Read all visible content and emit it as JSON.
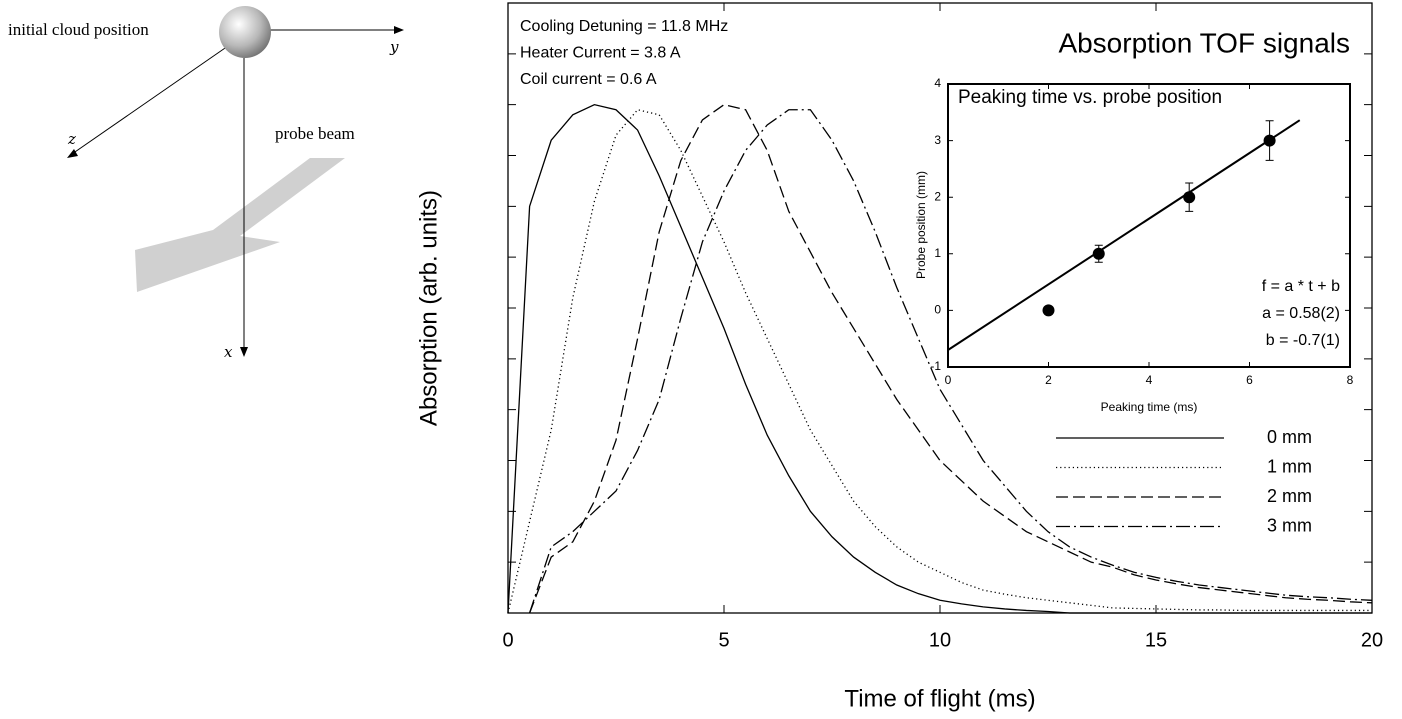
{
  "diagram": {
    "cloud_label": "initial cloud position",
    "beam_label": "probe beam",
    "axis_labels": [
      "y",
      "z",
      "x"
    ]
  },
  "chart_data": [
    {
      "type": "line",
      "title": "Absorption TOF signals",
      "annotations": [
        "Cooling Detuning = 11.8 MHz",
        "Heater Current = 3.8 A",
        "Coil current = 0.6 A"
      ],
      "xlabel": "Time of flight (ms)",
      "ylabel": "Absorption (arb. units)",
      "x": [
        0,
        0.5,
        1,
        1.5,
        2,
        2.5,
        3,
        3.5,
        4,
        4.5,
        5,
        5.5,
        6,
        6.5,
        7,
        7.5,
        8,
        8.5,
        9,
        9.5,
        10,
        10.5,
        11,
        11.5,
        12,
        12.5,
        13,
        13.5,
        14,
        14.5,
        15,
        15.5,
        16,
        16.5,
        17,
        17.5,
        18,
        18.5,
        19,
        19.5,
        20
      ],
      "series": [
        {
          "name": "0 mm",
          "color": "#000000",
          "dash": "solid",
          "values": [
            0,
            0.8,
            0.93,
            0.98,
            1.0,
            0.99,
            0.95,
            0.86,
            0.76,
            0.66,
            0.56,
            0.45,
            0.35,
            0.27,
            0.2,
            0.15,
            0.11,
            0.08,
            0.055,
            0.038,
            0.025,
            0.018,
            0.012,
            0.008,
            0.005,
            0.003,
            0,
            0,
            0,
            0,
            0,
            0,
            0,
            0,
            0,
            0,
            0,
            0,
            0,
            0,
            0
          ]
        },
        {
          "name": "1 mm",
          "color": "#000000",
          "dash": "dotted",
          "values": [
            0,
            0.18,
            0.36,
            0.62,
            0.81,
            0.94,
            0.99,
            0.98,
            0.91,
            0.82,
            0.73,
            0.63,
            0.54,
            0.45,
            0.36,
            0.29,
            0.22,
            0.17,
            0.13,
            0.1,
            0.08,
            0.06,
            0.045,
            0.037,
            0.03,
            0.025,
            0.02,
            0.015,
            0.01,
            0.009,
            0.008,
            0.007,
            0.006,
            0.006,
            0.005,
            0.005,
            0.005,
            0.005,
            0.005,
            0.005,
            0.005
          ]
        },
        {
          "name": "2 mm",
          "color": "#000000",
          "dash": "dashed",
          "values": [
            null,
            0,
            0.11,
            0.14,
            0.22,
            0.34,
            0.54,
            0.75,
            0.89,
            0.97,
            1.0,
            0.99,
            0.91,
            0.79,
            0.71,
            0.63,
            0.56,
            0.49,
            0.42,
            0.36,
            0.3,
            0.26,
            0.22,
            0.19,
            0.16,
            0.14,
            0.12,
            0.1,
            0.09,
            0.075,
            0.065,
            0.057,
            0.05,
            0.045,
            0.04,
            0.035,
            0.03,
            0.027,
            0.025,
            0.022,
            0.02
          ]
        },
        {
          "name": "3 mm",
          "color": "#000000",
          "dash": "dashdot",
          "values": [
            null,
            0,
            0.13,
            0.16,
            0.2,
            0.24,
            0.32,
            0.42,
            0.58,
            0.73,
            0.83,
            0.91,
            0.96,
            0.99,
            0.99,
            0.93,
            0.85,
            0.75,
            0.64,
            0.54,
            0.44,
            0.37,
            0.3,
            0.25,
            0.2,
            0.16,
            0.13,
            0.11,
            0.094,
            0.08,
            0.07,
            0.062,
            0.055,
            0.05,
            0.045,
            0.04,
            0.035,
            0.032,
            0.03,
            0.027,
            0.025
          ]
        }
      ],
      "xlim": [
        0,
        20
      ],
      "xticks": [
        0,
        5,
        10,
        15,
        20
      ],
      "ylim": [
        0,
        1.2
      ],
      "yticks": [
        0,
        0.1,
        0.2,
        0.3,
        0.4,
        0.5,
        0.6,
        0.7,
        0.8,
        0.9,
        1.0,
        1.1,
        1.2
      ],
      "ytick_labels": false,
      "legend": "lower right"
    },
    {
      "type": "scatter",
      "title": "Peaking time vs. probe position",
      "xlabel": "Peaking time (ms)",
      "ylabel": "Probe position (mm)",
      "x": [
        2,
        3,
        4.8,
        6.4
      ],
      "values": [
        0,
        1,
        2,
        3
      ],
      "errors": [
        0,
        0.15,
        0.25,
        0.35
      ],
      "color": "#000000",
      "fit": {
        "x": [
          0,
          7
        ],
        "values": [
          -0.7,
          3.36
        ]
      },
      "annotations": [
        "f = a * t + b",
        "a = 0.58(2)",
        "b = -0.7(1)"
      ],
      "xlim": [
        0,
        8
      ],
      "xticks": [
        0,
        2,
        4,
        6,
        8
      ],
      "ylim": [
        -1,
        4
      ],
      "yticks": [
        -1,
        0,
        1,
        2,
        3,
        4
      ]
    }
  ]
}
